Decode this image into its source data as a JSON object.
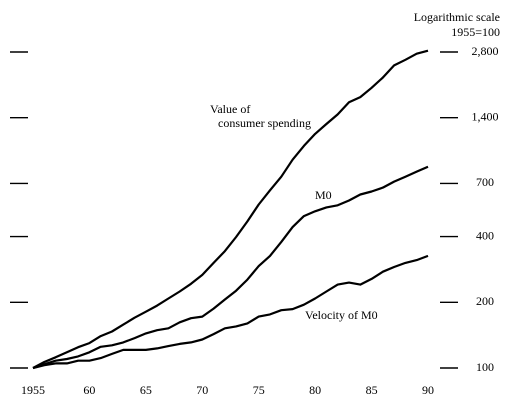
{
  "chart_data": {
    "type": "line",
    "log_scale": true,
    "axis_note": [
      "Logarithmic scale",
      "1955=100"
    ],
    "x": [
      1955,
      1956,
      1957,
      1958,
      1959,
      1960,
      1961,
      1962,
      1963,
      1964,
      1965,
      1966,
      1967,
      1968,
      1969,
      1970,
      1971,
      1972,
      1973,
      1974,
      1975,
      1976,
      1977,
      1978,
      1979,
      1980,
      1981,
      1982,
      1983,
      1984,
      1985,
      1986,
      1987,
      1988,
      1989,
      1990
    ],
    "xlim": [
      1955,
      1990
    ],
    "xticks": [
      1955,
      {
        "value": 1960,
        "label": "60"
      },
      {
        "value": 1965,
        "label": "65"
      },
      {
        "value": 1970,
        "label": "70"
      },
      {
        "value": 1975,
        "label": "75"
      },
      {
        "value": 1980,
        "label": "80"
      },
      {
        "value": 1985,
        "label": "85"
      },
      {
        "value": 1990,
        "label": "90"
      }
    ],
    "ylim": [
      100,
      2800
    ],
    "yticks": [
      100,
      200,
      400,
      700,
      {
        "value": 1400,
        "label": "1,400"
      },
      {
        "value": 2800,
        "label": "2,800"
      }
    ],
    "series": [
      {
        "name": [
          "Value of",
          "consumer spending"
        ],
        "color": "#000000",
        "values": [
          100,
          106.5,
          112,
          118,
          124.5,
          130,
          140,
          147,
          158,
          170,
          181,
          193,
          208,
          224,
          243,
          267,
          303,
          343,
          398,
          469,
          561,
          651,
          752,
          899,
          1040,
          1180,
          1310,
          1450,
          1650,
          1740,
          1920,
          2140,
          2430,
          2580,
          2750,
          2840
        ]
      },
      {
        "name": [
          "M0"
        ],
        "color": "#000000",
        "values": [
          100,
          104,
          108,
          110,
          113,
          118,
          125,
          127,
          131,
          137,
          144,
          149,
          152,
          162,
          169,
          172,
          187,
          206,
          226,
          254,
          293,
          326,
          378,
          442,
          496,
          522,
          544,
          556,
          585,
          623,
          643,
          670,
          714,
          752,
          793,
          835
        ]
      },
      {
        "name": [
          "Velocity of M0"
        ],
        "color": "#000000",
        "values": [
          100,
          103,
          105,
          105,
          108,
          108,
          111,
          116,
          121,
          121,
          121,
          123,
          126,
          129,
          131,
          135,
          143,
          152,
          155,
          160,
          172,
          176,
          184,
          186,
          195,
          208,
          224,
          241,
          246,
          241,
          256,
          276,
          290,
          303,
          312,
          326
        ]
      }
    ]
  }
}
